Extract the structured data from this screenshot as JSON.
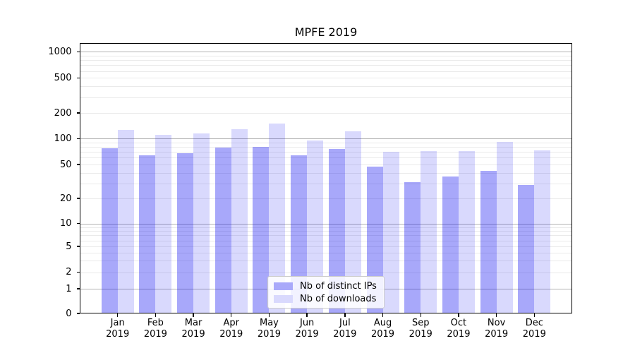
{
  "chart_data": {
    "type": "bar",
    "title": "MPFE 2019",
    "x_tick_year": "2019",
    "categories": [
      "Jan",
      "Feb",
      "Mar",
      "Apr",
      "May",
      "Jun",
      "Jul",
      "Aug",
      "Sep",
      "Oct",
      "Nov",
      "Dec"
    ],
    "series": [
      {
        "name": "Nb of distinct IPs",
        "values": [
          77,
          64,
          68,
          78,
          80,
          64,
          75,
          47,
          31,
          36,
          42,
          29
        ]
      },
      {
        "name": "Nb of downloads",
        "values": [
          127,
          110,
          115,
          128,
          150,
          95,
          121,
          70,
          71,
          72,
          91,
          73
        ]
      }
    ],
    "yscale": "symlog",
    "y_tick_labels": [
      0,
      1,
      2,
      5,
      10,
      20,
      50,
      100,
      200,
      500,
      1000
    ],
    "ylim": [
      0,
      1400
    ],
    "grid": "horizontal major and minor",
    "legend_position": "lower center"
  },
  "colors": {
    "bar_ips_fill": "rgba(0,0,240,0.34)",
    "bar_downloads_fill": "rgba(0,0,240,0.15)",
    "legend_swatch_ips": "#a9a9fa",
    "legend_swatch_downloads": "#d9d9fd",
    "grid_major": "#b3b3b3",
    "grid_minor": "#eaeaea",
    "axis": "#000000"
  }
}
